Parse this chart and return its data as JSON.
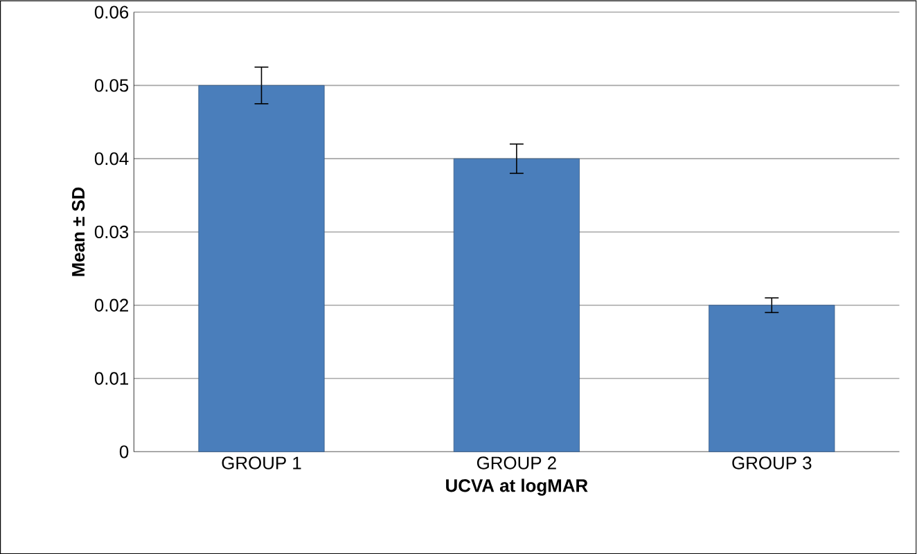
{
  "chart_data": {
    "type": "bar",
    "categories": [
      "GROUP 1",
      "GROUP 2",
      "GROUP 3"
    ],
    "values": [
      0.05,
      0.04,
      0.02
    ],
    "errors": [
      0.0025,
      0.002,
      0.001
    ],
    "color": "#4a7ebb",
    "xlabel": "UCVA at logMAR",
    "ylabel": "Mean ± SD",
    "ylim": [
      0,
      0.06
    ],
    "yticks": [
      0,
      0.01,
      0.02,
      0.03,
      0.04,
      0.05,
      0.06
    ],
    "grid": "y"
  }
}
